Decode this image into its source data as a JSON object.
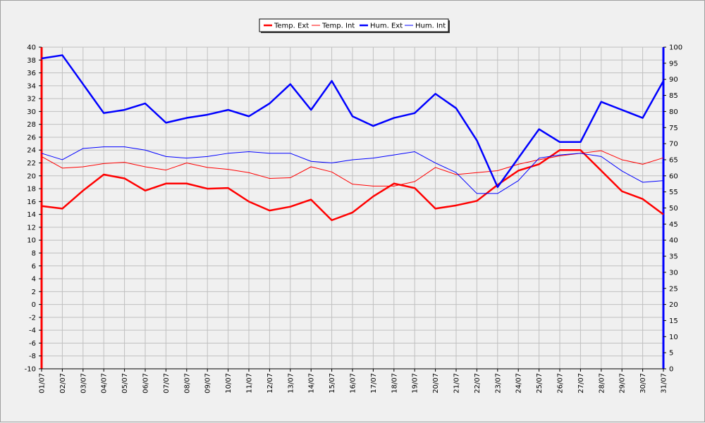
{
  "chart_data": {
    "type": "line",
    "title": "",
    "xlabel": "",
    "ylabel": "",
    "categories": [
      "01/07",
      "02/07",
      "03/07",
      "04/07",
      "05/07",
      "06/07",
      "07/07",
      "08/07",
      "09/07",
      "10/07",
      "11/07",
      "12/07",
      "13/07",
      "14/07",
      "15/07",
      "16/07",
      "17/07",
      "18/07",
      "19/07",
      "20/07",
      "21/07",
      "22/07",
      "23/07",
      "24/07",
      "25/07",
      "26/07",
      "27/07",
      "28/07",
      "29/07",
      "30/07",
      "31/07"
    ],
    "y_left": {
      "min": -10,
      "max": 40,
      "step": 2,
      "color": "#ff0000"
    },
    "y_right": {
      "min": 0,
      "max": 100,
      "step": 5,
      "color": "#0000ff"
    },
    "grid": true,
    "legend_position": "top-center",
    "series": [
      {
        "name": "Temp. Ext",
        "axis": "left",
        "color": "#ff0000",
        "width": "thick",
        "values": [
          15.3,
          14.9,
          17.7,
          20.2,
          19.6,
          17.7,
          18.8,
          18.8,
          18.0,
          18.1,
          16.0,
          14.6,
          15.2,
          16.3,
          13.1,
          14.3,
          16.8,
          18.8,
          18.1,
          14.9,
          15.4,
          16.1,
          18.6,
          20.8,
          21.8,
          24.0,
          24.0,
          20.8,
          17.6,
          16.4,
          14.0
        ]
      },
      {
        "name": "Temp. Int",
        "axis": "left",
        "color": "#ff0000",
        "width": "thin",
        "values": [
          23.0,
          21.2,
          21.4,
          21.9,
          22.1,
          21.4,
          20.9,
          22.0,
          21.3,
          21.0,
          20.5,
          19.6,
          19.7,
          21.4,
          20.6,
          18.7,
          18.4,
          18.4,
          19.1,
          21.3,
          20.2,
          20.5,
          20.8,
          21.8,
          22.5,
          23.1,
          23.5,
          23.9,
          22.5,
          21.8,
          22.8
        ]
      },
      {
        "name": "Hum. Ext",
        "axis": "right",
        "color": "#0000ff",
        "width": "thick",
        "values": [
          96.5,
          97.5,
          88.5,
          79.5,
          80.5,
          82.5,
          76.5,
          78,
          79,
          80.5,
          78.5,
          82.5,
          88.5,
          80.5,
          89.5,
          78.5,
          75.5,
          78,
          79.5,
          85.5,
          81,
          71,
          56.5,
          65.5,
          74.5,
          70.5,
          70.5,
          83,
          80.5,
          78,
          89.5
        ]
      },
      {
        "name": "Hum. Int",
        "axis": "right",
        "color": "#0000ff",
        "width": "thin",
        "values": [
          67,
          65,
          68.5,
          69,
          69,
          68,
          66,
          65.5,
          66,
          67,
          67.5,
          67,
          67,
          64.5,
          64,
          65,
          65.5,
          66.5,
          67.5,
          64,
          61,
          54.5,
          54.5,
          58.5,
          65.5,
          66.5,
          67,
          66,
          61.5,
          58,
          58.5
        ]
      }
    ]
  }
}
